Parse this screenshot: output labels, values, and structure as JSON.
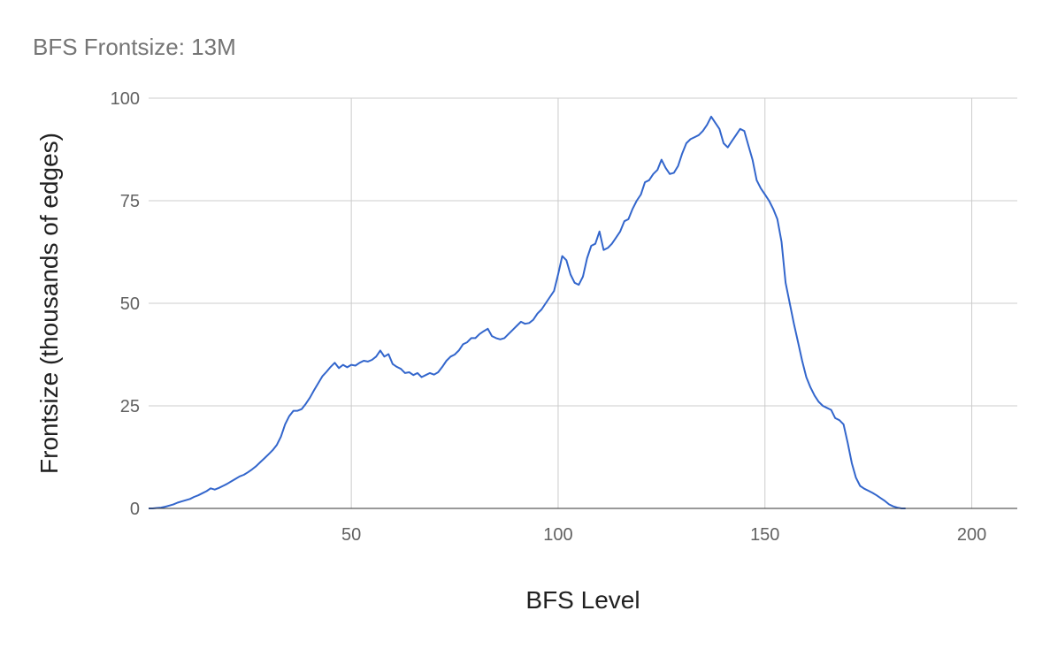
{
  "chart_data": {
    "type": "line",
    "title": "BFS Frontsize: 13M",
    "xlabel": "BFS Level",
    "ylabel": "Frontsize (thousands of edges)",
    "xlim": [
      1,
      211
    ],
    "ylim": [
      0,
      100
    ],
    "x_ticks": [
      50,
      100,
      150,
      200
    ],
    "y_ticks": [
      0,
      25,
      50,
      75,
      100
    ],
    "grid": true,
    "line_color": "#3366cc",
    "series": [
      {
        "name": "",
        "points": [
          [
            1,
            0
          ],
          [
            2,
            0
          ],
          [
            3,
            0.1
          ],
          [
            4,
            0.2
          ],
          [
            5,
            0.4
          ],
          [
            6,
            0.7
          ],
          [
            7,
            1.0
          ],
          [
            8,
            1.4
          ],
          [
            9,
            1.7
          ],
          [
            10,
            2.0
          ],
          [
            11,
            2.3
          ],
          [
            12,
            2.8
          ],
          [
            13,
            3.2
          ],
          [
            14,
            3.7
          ],
          [
            15,
            4.2
          ],
          [
            16,
            4.9
          ],
          [
            17,
            4.6
          ],
          [
            18,
            5.0
          ],
          [
            19,
            5.5
          ],
          [
            20,
            6.0
          ],
          [
            21,
            6.6
          ],
          [
            22,
            7.2
          ],
          [
            23,
            7.8
          ],
          [
            24,
            8.2
          ],
          [
            25,
            8.8
          ],
          [
            26,
            9.5
          ],
          [
            27,
            10.3
          ],
          [
            28,
            11.3
          ],
          [
            29,
            12.2
          ],
          [
            30,
            13.2
          ],
          [
            31,
            14.2
          ],
          [
            32,
            15.5
          ],
          [
            33,
            17.5
          ],
          [
            34,
            20.5
          ],
          [
            35,
            22.5
          ],
          [
            36,
            23.8
          ],
          [
            37,
            23.8
          ],
          [
            38,
            24.2
          ],
          [
            39,
            25.5
          ],
          [
            40,
            27.0
          ],
          [
            41,
            28.8
          ],
          [
            42,
            30.5
          ],
          [
            43,
            32.2
          ],
          [
            44,
            33.3
          ],
          [
            45,
            34.5
          ],
          [
            46,
            35.5
          ],
          [
            47,
            34.2
          ],
          [
            48,
            35.0
          ],
          [
            49,
            34.4
          ],
          [
            50,
            35.0
          ],
          [
            51,
            34.8
          ],
          [
            52,
            35.5
          ],
          [
            53,
            36.0
          ],
          [
            54,
            35.8
          ],
          [
            55,
            36.2
          ],
          [
            56,
            37.0
          ],
          [
            57,
            38.5
          ],
          [
            58,
            37.0
          ],
          [
            59,
            37.6
          ],
          [
            60,
            35.2
          ],
          [
            61,
            34.5
          ],
          [
            62,
            34.0
          ],
          [
            63,
            33.0
          ],
          [
            64,
            33.2
          ],
          [
            65,
            32.5
          ],
          [
            66,
            33.0
          ],
          [
            67,
            32.0
          ],
          [
            68,
            32.5
          ],
          [
            69,
            33.0
          ],
          [
            70,
            32.6
          ],
          [
            71,
            33.2
          ],
          [
            72,
            34.5
          ],
          [
            73,
            36.0
          ],
          [
            74,
            37.0
          ],
          [
            75,
            37.5
          ],
          [
            76,
            38.5
          ],
          [
            77,
            40.0
          ],
          [
            78,
            40.5
          ],
          [
            79,
            41.5
          ],
          [
            80,
            41.5
          ],
          [
            81,
            42.5
          ],
          [
            82,
            43.2
          ],
          [
            83,
            43.8
          ],
          [
            84,
            42.0
          ],
          [
            85,
            41.5
          ],
          [
            86,
            41.2
          ],
          [
            87,
            41.5
          ],
          [
            88,
            42.5
          ],
          [
            89,
            43.5
          ],
          [
            90,
            44.5
          ],
          [
            91,
            45.5
          ],
          [
            92,
            45.0
          ],
          [
            93,
            45.2
          ],
          [
            94,
            46.0
          ],
          [
            95,
            47.5
          ],
          [
            96,
            48.5
          ],
          [
            97,
            50.0
          ],
          [
            98,
            51.5
          ],
          [
            99,
            53.0
          ],
          [
            100,
            57.0
          ],
          [
            101,
            61.5
          ],
          [
            102,
            60.5
          ],
          [
            103,
            57.0
          ],
          [
            104,
            55.0
          ],
          [
            105,
            54.5
          ],
          [
            106,
            56.5
          ],
          [
            107,
            61.0
          ],
          [
            108,
            64.0
          ],
          [
            109,
            64.5
          ],
          [
            110,
            67.5
          ],
          [
            111,
            63.0
          ],
          [
            112,
            63.5
          ],
          [
            113,
            64.5
          ],
          [
            114,
            66.0
          ],
          [
            115,
            67.5
          ],
          [
            116,
            70.0
          ],
          [
            117,
            70.5
          ],
          [
            118,
            73.0
          ],
          [
            119,
            75.0
          ],
          [
            120,
            76.5
          ],
          [
            121,
            79.5
          ],
          [
            122,
            80.0
          ],
          [
            123,
            81.5
          ],
          [
            124,
            82.5
          ],
          [
            125,
            85.0
          ],
          [
            126,
            83.0
          ],
          [
            127,
            81.5
          ],
          [
            128,
            81.8
          ],
          [
            129,
            83.5
          ],
          [
            130,
            86.5
          ],
          [
            131,
            89.0
          ],
          [
            132,
            90.0
          ],
          [
            133,
            90.5
          ],
          [
            134,
            91.0
          ],
          [
            135,
            92.0
          ],
          [
            136,
            93.5
          ],
          [
            137,
            95.5
          ],
          [
            138,
            94.0
          ],
          [
            139,
            92.5
          ],
          [
            140,
            89.0
          ],
          [
            141,
            88.0
          ],
          [
            142,
            89.5
          ],
          [
            143,
            91.0
          ],
          [
            144,
            92.5
          ],
          [
            145,
            92.0
          ],
          [
            146,
            88.5
          ],
          [
            147,
            85.0
          ],
          [
            148,
            80.0
          ],
          [
            149,
            78.0
          ],
          [
            150,
            76.5
          ],
          [
            151,
            75.0
          ],
          [
            152,
            73.0
          ],
          [
            153,
            70.5
          ],
          [
            154,
            65.0
          ],
          [
            155,
            55.0
          ],
          [
            156,
            50.0
          ],
          [
            157,
            45.0
          ],
          [
            158,
            40.5
          ],
          [
            159,
            36.0
          ],
          [
            160,
            32.0
          ],
          [
            161,
            29.5
          ],
          [
            162,
            27.5
          ],
          [
            163,
            26.0
          ],
          [
            164,
            25.0
          ],
          [
            165,
            24.5
          ],
          [
            166,
            24.0
          ],
          [
            167,
            22.0
          ],
          [
            168,
            21.5
          ],
          [
            169,
            20.5
          ],
          [
            170,
            16.0
          ],
          [
            171,
            11.0
          ],
          [
            172,
            7.5
          ],
          [
            173,
            5.5
          ],
          [
            174,
            4.8
          ],
          [
            175,
            4.3
          ],
          [
            176,
            3.8
          ],
          [
            177,
            3.2
          ],
          [
            178,
            2.5
          ],
          [
            179,
            1.8
          ],
          [
            180,
            1.0
          ],
          [
            181,
            0.5
          ],
          [
            182,
            0.2
          ],
          [
            183,
            0
          ],
          [
            184,
            0
          ]
        ]
      }
    ]
  }
}
